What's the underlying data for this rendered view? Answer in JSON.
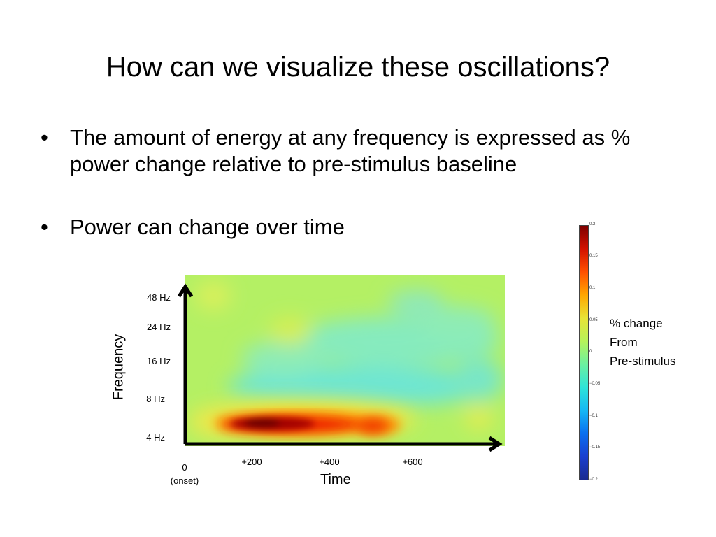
{
  "slide": {
    "title": "How can we visualize these oscillations?",
    "bullets": [
      "The amount of energy at any frequency is expressed as % power change relative to pre-stimulus baseline",
      "Power can change over time"
    ]
  },
  "figure": {
    "y_axis_title": "Frequency",
    "y_ticks": [
      "48 Hz",
      "24 Hz",
      "16 Hz",
      "8 Hz",
      "4 Hz"
    ],
    "x_axis_title": "Time",
    "x_ticks": [
      "+200",
      "+400",
      "+600"
    ],
    "onset_label_line1": "0",
    "onset_label_line2": "(onset)",
    "colorbar_ticks": [
      "0.2",
      "0.15",
      "0.1",
      "0.05",
      "0",
      "−0.05",
      "−0.1",
      "−0.15",
      "−0.2"
    ],
    "colorbar_caption": [
      "% change",
      "From",
      "Pre-stimulus"
    ],
    "colors": {
      "background_level": "#b4f064",
      "strong_positive": "#7a0000",
      "negative": "#6ee6d2"
    }
  }
}
